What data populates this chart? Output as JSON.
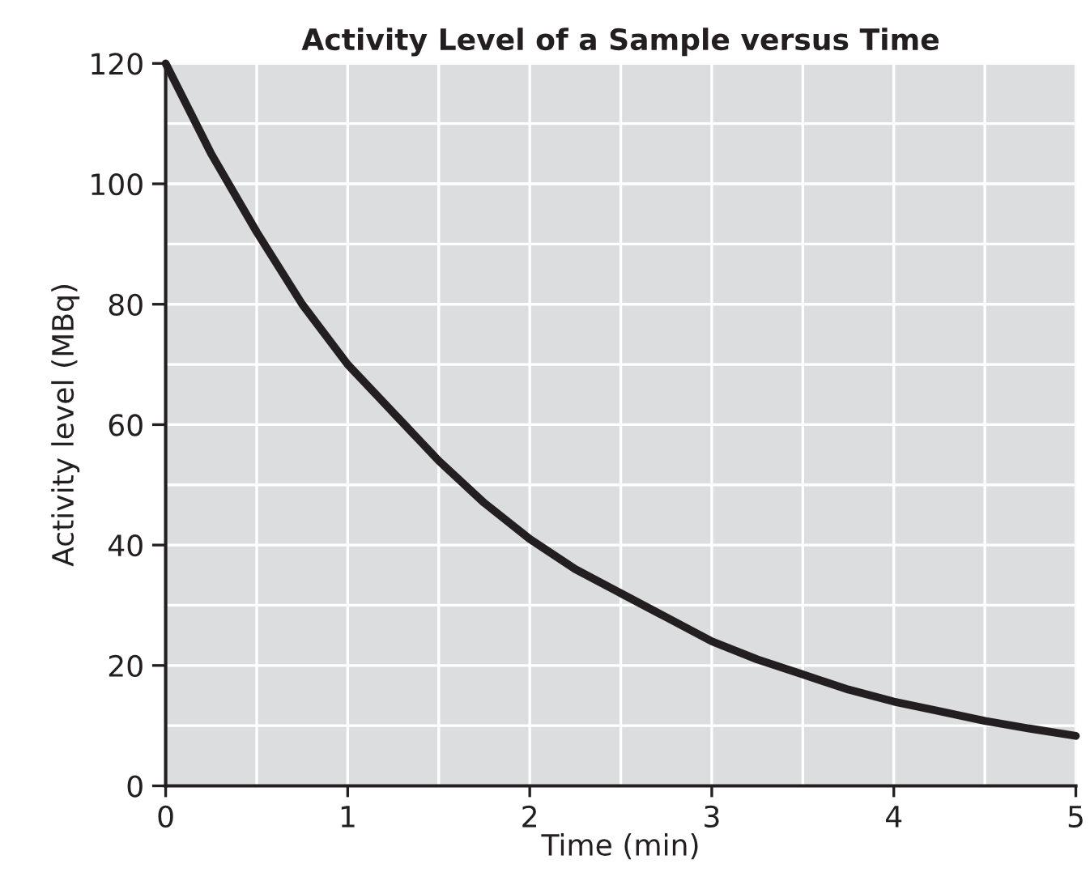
{
  "chart_data": {
    "type": "line",
    "title": "Activity Level of a Sample versus Time",
    "xlabel": "Time (min)",
    "ylabel": "Activity level (MBq)",
    "x": [
      0,
      0.25,
      0.5,
      0.75,
      1,
      1.25,
      1.5,
      1.75,
      2,
      2.25,
      2.5,
      2.75,
      3,
      3.25,
      3.5,
      3.75,
      4,
      4.25,
      4.5,
      4.75,
      5
    ],
    "series": [
      {
        "color": "#231f20",
        "values": [
          120,
          105,
          92,
          80,
          70,
          62,
          54,
          47,
          41,
          36,
          32,
          28,
          24,
          21,
          18.5,
          16,
          14,
          12.4,
          10.8,
          9.5,
          8.3
        ]
      }
    ],
    "xlim": [
      0,
      5
    ],
    "ylim": [
      0,
      120
    ],
    "xticks": [
      0,
      {
        "value": 0.5,
        "label": null
      },
      1,
      {
        "value": 1.5,
        "label": null
      },
      2,
      {
        "value": 2.5,
        "label": null
      },
      3,
      {
        "value": 3.5,
        "label": null
      },
      4,
      {
        "value": 4.5,
        "label": null
      },
      5
    ],
    "yticks": [
      0,
      {
        "value": 10,
        "label": null
      },
      20,
      {
        "value": 30,
        "label": null
      },
      40,
      {
        "value": 50,
        "label": null
      },
      60,
      {
        "value": 70,
        "label": null
      },
      80,
      {
        "value": 90,
        "label": null
      },
      100,
      {
        "value": 110,
        "label": null
      },
      120
    ],
    "grid": true,
    "marker": "none",
    "line_style": "solid"
  }
}
